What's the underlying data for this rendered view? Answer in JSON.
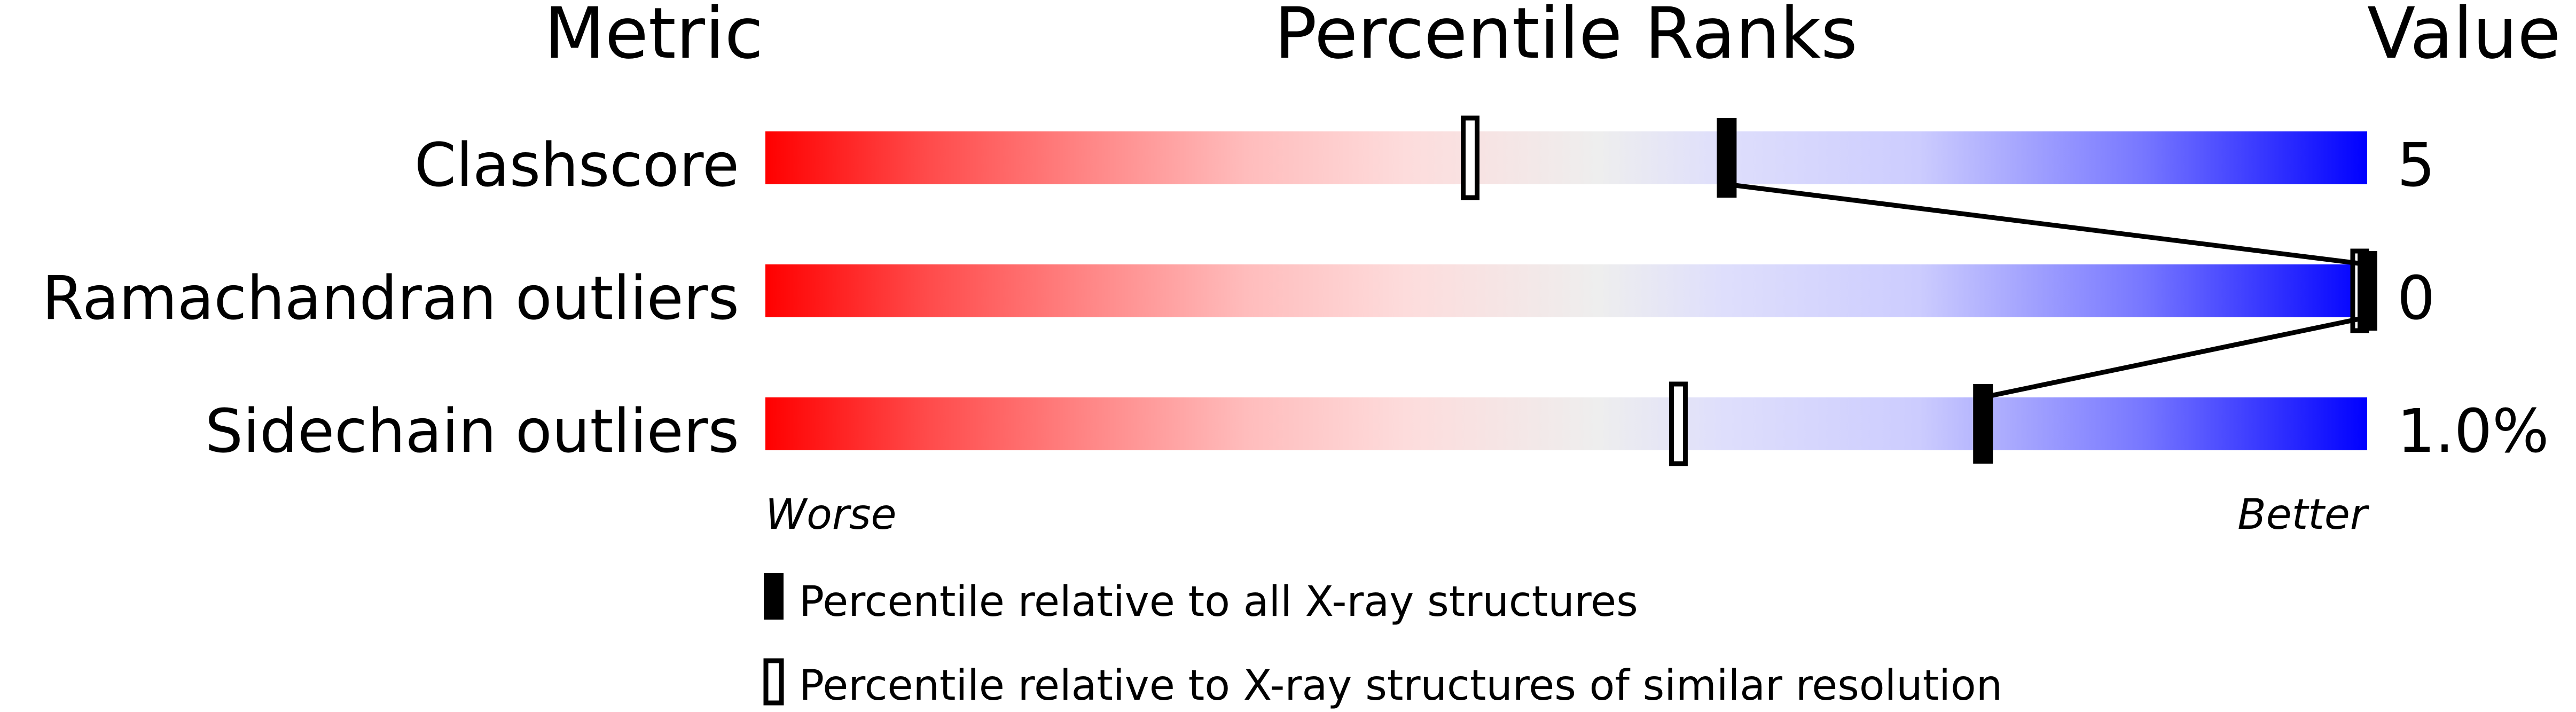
{
  "chart_data": {
    "type": "percentile-bar",
    "headers": {
      "metric": "Metric",
      "ranks": "Percentile Ranks",
      "value": "Value"
    },
    "xlim": [
      0,
      100
    ],
    "axis_labels": {
      "worse": "Worse",
      "better": "Better"
    },
    "gradient_colors": [
      "#ff0000",
      "#eeeeee",
      "#0000ff"
    ],
    "metrics": [
      {
        "name": "Clashscore",
        "value": "5",
        "percentile_all": 60,
        "percentile_similar": 44
      },
      {
        "name": "Ramachandran outliers",
        "value": "0",
        "percentile_all": 100,
        "percentile_similar": 100
      },
      {
        "name": "Sidechain outliers",
        "value": "1.0%",
        "percentile_all": 76,
        "percentile_similar": 57
      }
    ],
    "legend": {
      "all": "Percentile relative to all X-ray structures",
      "similar": "Percentile relative to X-ray structures of similar resolution"
    }
  }
}
